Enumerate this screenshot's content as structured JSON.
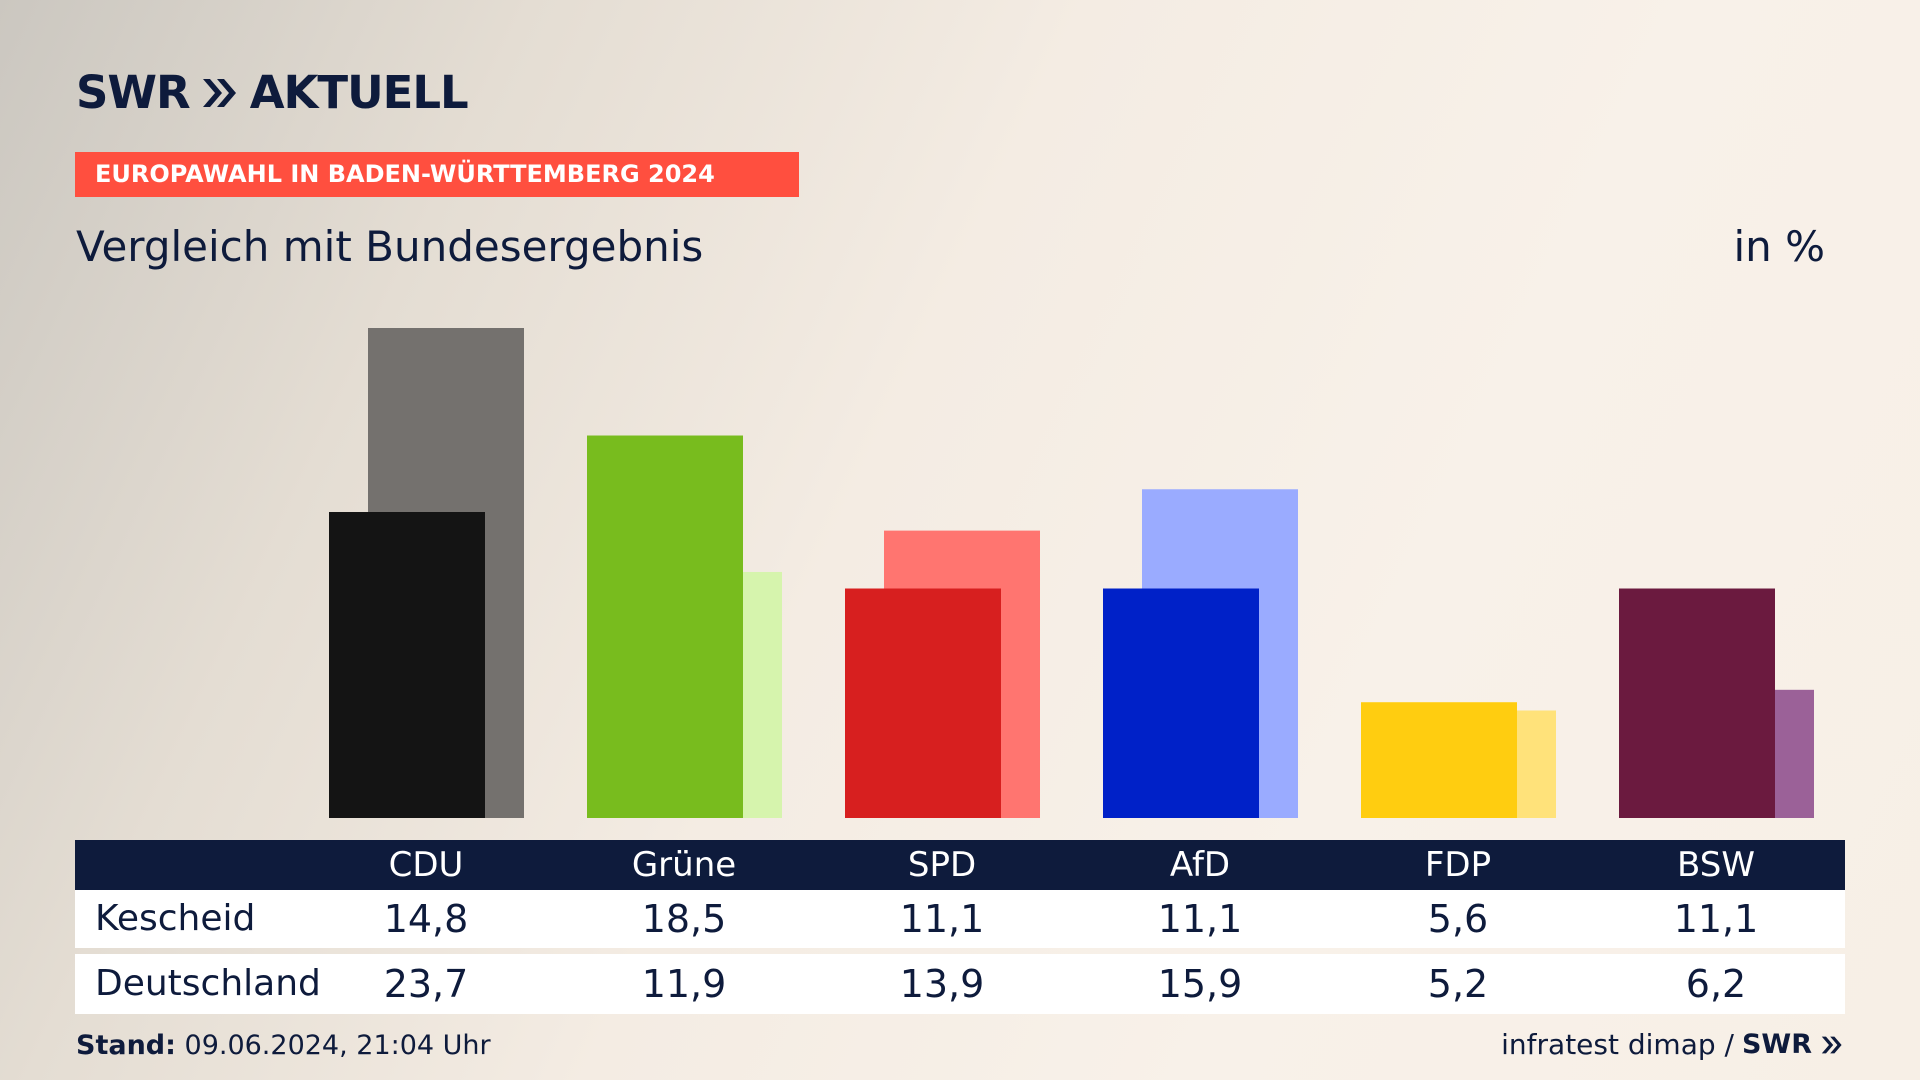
{
  "header": {
    "logo_text_1": "SWR",
    "logo_text_2": "AKTUELL",
    "tag": "EUROPAWAHL IN BADEN-WÜRTTEMBERG 2024",
    "subtitle": "Vergleich mit Bundesergebnis",
    "unit": "in %"
  },
  "chart_data": {
    "type": "bar",
    "categories": [
      "CDU",
      "Grüne",
      "SPD",
      "AfD",
      "FDP",
      "BSW"
    ],
    "series": [
      {
        "name": "Kescheid",
        "values": [
          14.8,
          18.5,
          11.1,
          11.1,
          5.6,
          11.1
        ]
      },
      {
        "name": "Deutschland",
        "values": [
          23.7,
          11.9,
          13.9,
          15.9,
          5.2,
          6.2
        ]
      }
    ],
    "colors": {
      "primary": [
        "#141414",
        "#78bc1e",
        "#d71f1f",
        "#0021c8",
        "#ffcd10",
        "#6b1a3f"
      ],
      "secondary": [
        "#74716e",
        "#d6f4ad",
        "#ff7570",
        "#9aabff",
        "#ffe27a",
        "#9b6198"
      ]
    },
    "ylim": [
      0,
      23.7
    ],
    "grid": false
  },
  "table": {
    "row_labels": [
      "Kescheid",
      "Deutschland"
    ],
    "headers": [
      "CDU",
      "Grüne",
      "SPD",
      "AfD",
      "FDP",
      "BSW"
    ],
    "row1": [
      "14,8",
      "18,5",
      "11,1",
      "11,1",
      "5,6",
      "11,1"
    ],
    "row2": [
      "23,7",
      "11,9",
      "13,9",
      "15,9",
      "5,2",
      "6,2"
    ]
  },
  "footer": {
    "stand_label": "Stand:",
    "stand_value": "09.06.2024, 21:04 Uhr",
    "source": "infratest dimap /",
    "source_logo": "SWR"
  }
}
